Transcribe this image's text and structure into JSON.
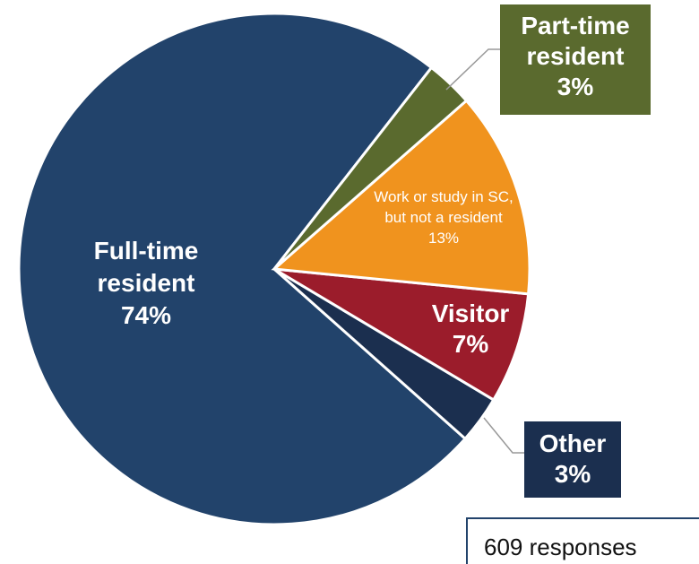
{
  "chart_data": {
    "type": "pie",
    "categories": [
      "Part-time resident",
      "Work or study in SC, but not a resident",
      "Visitor",
      "Other",
      "Full-time resident"
    ],
    "values": [
      3,
      13,
      7,
      3,
      74
    ],
    "value_labels": [
      "3%",
      "13%",
      "7%",
      "3%",
      "74%"
    ],
    "colors": [
      "#5a6a2e",
      "#f0931e",
      "#9b1c2b",
      "#1b2f4f",
      "#22436b"
    ],
    "note": "609 responses"
  }
}
